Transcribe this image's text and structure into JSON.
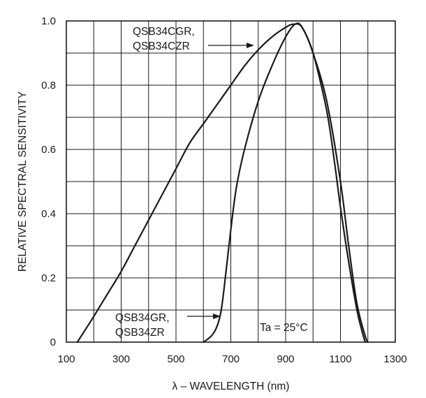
{
  "chart_data": {
    "type": "line",
    "title": "",
    "xlabel": "λ – WAVELENGTH (nm)",
    "ylabel": "RELATIVE SPECTRAL SENSITIVITY",
    "xlim": [
      100,
      1300
    ],
    "ylim": [
      0,
      1.0
    ],
    "x_ticks": [
      100,
      300,
      500,
      700,
      900,
      1100,
      1300
    ],
    "x_tick_labels": [
      "100",
      "300",
      "500",
      "700",
      "900",
      "1100",
      "1300"
    ],
    "y_ticks": [
      0,
      0.2,
      0.4,
      0.6,
      0.8,
      1.0
    ],
    "y_tick_labels": [
      "0",
      "0.2",
      "0.4",
      "0.6",
      "0.8",
      "1.0"
    ],
    "grid": true,
    "series": [
      {
        "label_lines": [
          "QSB34CGR,",
          "QSB34CZR"
        ],
        "x": [
          140,
          200,
          250,
          300,
          350,
          400,
          450,
          500,
          550,
          600,
          650,
          700,
          750,
          800,
          850,
          900,
          930,
          960,
          1000,
          1050,
          1100,
          1130,
          1160,
          1190,
          1200
        ],
        "y": [
          0,
          0.08,
          0.15,
          0.22,
          0.3,
          0.38,
          0.46,
          0.54,
          0.62,
          0.68,
          0.74,
          0.8,
          0.86,
          0.91,
          0.95,
          0.98,
          0.99,
          0.98,
          0.9,
          0.75,
          0.5,
          0.3,
          0.12,
          0.02,
          0
        ]
      },
      {
        "label_lines": [
          "QSB34GR,",
          "QSB34ZR"
        ],
        "x": [
          600,
          630,
          650,
          665,
          680,
          700,
          720,
          750,
          800,
          850,
          900,
          935,
          960,
          1000,
          1050,
          1080,
          1100,
          1130,
          1160,
          1180,
          1190
        ],
        "y": [
          0,
          0.02,
          0.05,
          0.1,
          0.2,
          0.35,
          0.48,
          0.6,
          0.75,
          0.86,
          0.95,
          0.99,
          0.98,
          0.9,
          0.72,
          0.55,
          0.42,
          0.25,
          0.1,
          0.03,
          0
        ]
      }
    ],
    "annotations": [
      {
        "text": "Ta = 25°C"
      }
    ]
  }
}
